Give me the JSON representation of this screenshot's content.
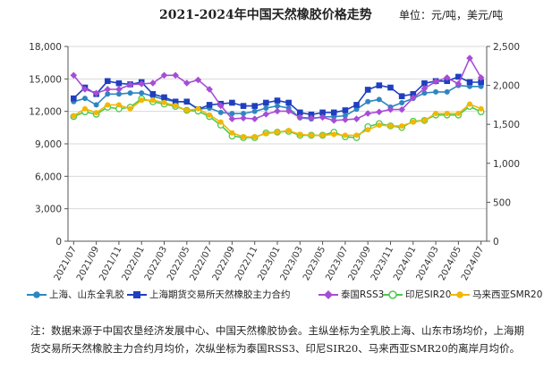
{
  "title": "2021-2024年中国天然橡胶价格走势",
  "unit": "单位：元/吨，美元/吨",
  "note": "注：数据来源于中国农垦经济发展中心、中国天然橡胶协会。主纵坐标为全乳胶上海、山东市场均价，上海期货交易所天然橡胶主力合约月均价，次纵坐标为泰国RSS3、印尼SIR20、马来西亚SMR20的离岸月均价。",
  "colors": {
    "shandong": "#2e86c1",
    "shfe": "#1f3fbf",
    "rss3": "#a64dd6",
    "sir20": "#4cc94c",
    "smr20": "#f2b705"
  },
  "chart_data": {
    "type": "line",
    "x": [
      "2021/07",
      "2021/08",
      "2021/09",
      "2021/10",
      "2021/11",
      "2021/12",
      "2022/01",
      "2022/02",
      "2022/03",
      "2022/04",
      "2022/05",
      "2022/06",
      "2022/07",
      "2022/08",
      "2022/09",
      "2022/10",
      "2022/11",
      "2022/12",
      "2023/01",
      "2023/02",
      "2023/03",
      "2023/04",
      "2023/05",
      "2023/06",
      "2023/07",
      "2023/08",
      "2023/09",
      "2023/10",
      "2023/11",
      "2023/12",
      "2024/01",
      "2024/02",
      "2024/03",
      "2024/04",
      "2024/05",
      "2024/06",
      "2024/07"
    ],
    "xticks": [
      "2021/07",
      "2021/09",
      "2021/11",
      "2022/01",
      "2022/03",
      "2022/05",
      "2022/07",
      "2022/09",
      "2022/11",
      "2023/01",
      "2023/03",
      "2023/05",
      "2023/07",
      "2023/09",
      "2023/11",
      "2024/01",
      "2024/03",
      "2024/05",
      "2024/07"
    ],
    "y_left": {
      "ylim": [
        0,
        18000
      ],
      "ticks": [
        "0",
        "3,000",
        "6,000",
        "9,000",
        "12,000",
        "15,000",
        "18,000"
      ]
    },
    "y_right": {
      "ylim": [
        0,
        2500
      ],
      "ticks": [
        "0",
        "500",
        "1,000",
        "1,500",
        "2,000",
        "2,500"
      ]
    },
    "grid": true,
    "legend": "bottom",
    "series": [
      {
        "name": "上海、山东全乳胶",
        "axis": "left",
        "marker": "circle",
        "values": [
          12900,
          13200,
          12600,
          13600,
          13600,
          13700,
          13700,
          13400,
          13100,
          12900,
          12900,
          12200,
          12300,
          11900,
          11800,
          11800,
          12000,
          12300,
          12500,
          12300,
          11400,
          11300,
          11500,
          11500,
          11600,
          12200,
          12900,
          13100,
          12400,
          12800,
          13200,
          13700,
          13800,
          13800,
          14400,
          14300,
          14300
        ]
      },
      {
        "name": "上海期货交易所天然橡胶主力合约",
        "axis": "left",
        "marker": "square",
        "values": [
          13200,
          14200,
          13600,
          14800,
          14600,
          14500,
          14700,
          13600,
          13300,
          12900,
          12900,
          12200,
          12600,
          12700,
          12800,
          12500,
          12500,
          12800,
          13000,
          12800,
          11900,
          11700,
          11900,
          11900,
          12100,
          12600,
          14000,
          14400,
          14200,
          13400,
          13600,
          14600,
          14800,
          14800,
          15200,
          14700,
          14700
        ]
      },
      {
        "name": "泰国RSS3",
        "axis": "right",
        "marker": "diamond",
        "values": [
          2130,
          1950,
          1900,
          1950,
          1950,
          2010,
          2020,
          2030,
          2130,
          2130,
          2030,
          2070,
          1950,
          1740,
          1570,
          1580,
          1570,
          1630,
          1670,
          1670,
          1590,
          1580,
          1590,
          1550,
          1560,
          1570,
          1640,
          1660,
          1690,
          1690,
          1840,
          1960,
          2050,
          2100,
          2020,
          2350,
          2100
        ]
      },
      {
        "name": "印尼SIR20",
        "axis": "right",
        "marker": "hollow-circle",
        "values": [
          1600,
          1660,
          1630,
          1720,
          1700,
          1720,
          1830,
          1790,
          1760,
          1730,
          1680,
          1670,
          1600,
          1490,
          1350,
          1330,
          1330,
          1390,
          1400,
          1410,
          1360,
          1360,
          1360,
          1400,
          1340,
          1330,
          1470,
          1510,
          1480,
          1460,
          1540,
          1550,
          1620,
          1620,
          1620,
          1730,
          1660
        ]
      },
      {
        "name": "马来西亚SMR20",
        "axis": "right",
        "marker": "filled-circle",
        "values": [
          1610,
          1700,
          1650,
          1750,
          1750,
          1700,
          1810,
          1810,
          1780,
          1740,
          1680,
          1700,
          1620,
          1530,
          1390,
          1340,
          1340,
          1380,
          1400,
          1420,
          1370,
          1360,
          1360,
          1370,
          1360,
          1360,
          1430,
          1490,
          1480,
          1480,
          1530,
          1550,
          1640,
          1640,
          1640,
          1760,
          1700
        ]
      }
    ]
  }
}
